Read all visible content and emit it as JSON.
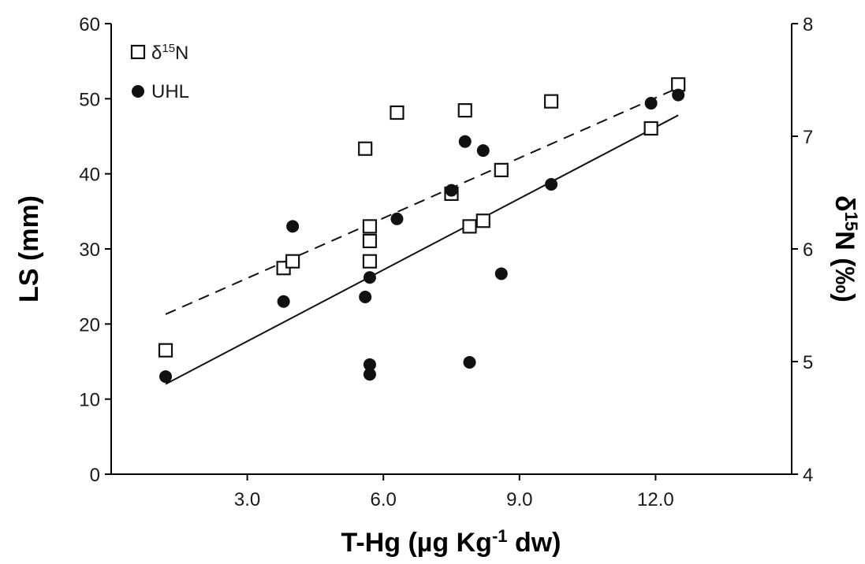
{
  "chart_data": {
    "type": "scatter",
    "xlabel": "T-Hg (µg Kg-1 dw)",
    "xlabel_parts": {
      "pre": "T-Hg (µg Kg",
      "sup": "-1",
      "post": " dw)"
    },
    "ylabel_left": "LS (mm)",
    "ylabel_right_parts": {
      "pre": "δ",
      "sup": "15",
      "post": "N (‰)"
    },
    "xlim": [
      0,
      15
    ],
    "ylim_left": [
      0,
      60
    ],
    "ylim_right": [
      4,
      8
    ],
    "x_ticks": [
      "3.0",
      "6.0",
      "9.0",
      "12.0"
    ],
    "x_tick_values": [
      3,
      6,
      9,
      12
    ],
    "y_left_ticks": [
      "0",
      "10",
      "20",
      "30",
      "40",
      "50",
      "60"
    ],
    "y_left_tick_values": [
      0,
      10,
      20,
      30,
      40,
      50,
      60
    ],
    "y_right_ticks": [
      "4",
      "5",
      "6",
      "7",
      "8"
    ],
    "y_right_tick_values": [
      4,
      5,
      6,
      7,
      8
    ],
    "grid": false,
    "legend_position": "top-left",
    "series": [
      {
        "name_parts": {
          "pre": "δ",
          "sup": "15",
          "post": "N"
        },
        "marker": "open-square",
        "axis": "right",
        "fit_style": "dashed",
        "fit": {
          "x": [
            1.2,
            12.5
          ],
          "y": [
            5.42,
            7.43
          ]
        },
        "points": [
          {
            "x": 1.2,
            "y": 5.1
          },
          {
            "x": 3.8,
            "y": 5.83
          },
          {
            "x": 4.0,
            "y": 5.89
          },
          {
            "x": 5.6,
            "y": 6.89
          },
          {
            "x": 5.7,
            "y": 6.2
          },
          {
            "x": 5.7,
            "y": 6.07
          },
          {
            "x": 5.7,
            "y": 5.89
          },
          {
            "x": 6.3,
            "y": 7.21
          },
          {
            "x": 7.5,
            "y": 6.49
          },
          {
            "x": 7.8,
            "y": 7.23
          },
          {
            "x": 7.9,
            "y": 6.2
          },
          {
            "x": 8.2,
            "y": 6.25
          },
          {
            "x": 8.6,
            "y": 6.7
          },
          {
            "x": 9.7,
            "y": 7.31
          },
          {
            "x": 11.9,
            "y": 7.07
          },
          {
            "x": 12.5,
            "y": 7.46
          }
        ]
      },
      {
        "name": "UHL",
        "marker": "filled-circle",
        "axis": "left",
        "fit_style": "solid",
        "fit": {
          "x": [
            1.2,
            12.5
          ],
          "y": [
            12.0,
            47.8
          ]
        },
        "points": [
          {
            "x": 1.2,
            "y": 13.0
          },
          {
            "x": 3.8,
            "y": 23.0
          },
          {
            "x": 4.0,
            "y": 33.0
          },
          {
            "x": 5.7,
            "y": 26.2
          },
          {
            "x": 5.6,
            "y": 23.6
          },
          {
            "x": 5.7,
            "y": 14.6
          },
          {
            "x": 5.7,
            "y": 13.3
          },
          {
            "x": 6.3,
            "y": 34.0
          },
          {
            "x": 7.5,
            "y": 37.8
          },
          {
            "x": 7.8,
            "y": 44.3
          },
          {
            "x": 7.9,
            "y": 14.9
          },
          {
            "x": 8.2,
            "y": 43.1
          },
          {
            "x": 8.6,
            "y": 26.7
          },
          {
            "x": 9.7,
            "y": 38.6
          },
          {
            "x": 11.9,
            "y": 49.4
          },
          {
            "x": 12.5,
            "y": 50.5
          }
        ]
      }
    ]
  }
}
